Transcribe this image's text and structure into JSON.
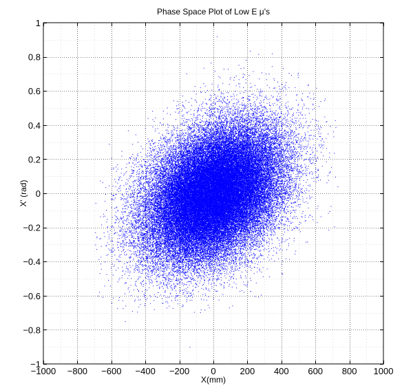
{
  "chart_data": {
    "type": "scatter",
    "title": "Phase Space Plot of Low E  μ's",
    "xlabel": "X(mm)",
    "ylabel": "X' (rad)",
    "xlim": [
      -1000,
      1000
    ],
    "ylim": [
      -1,
      1
    ],
    "x_ticks": [
      -1000,
      -800,
      -600,
      -400,
      -200,
      0,
      200,
      400,
      600,
      800,
      1000
    ],
    "y_ticks": [
      -1,
      -0.8,
      -0.6,
      -0.4,
      -0.2,
      0,
      0.2,
      0.4,
      0.6,
      0.8,
      1
    ],
    "x_tick_labels": [
      "−1000",
      "−800",
      "−600",
      "−400",
      "−200",
      "0",
      "200",
      "400",
      "600",
      "800",
      "1000"
    ],
    "y_tick_labels": [
      "−1",
      "−0.8",
      "−0.6",
      "−0.4",
      "−0.2",
      "0",
      "0.2",
      "0.4",
      "0.6",
      "0.8",
      "1"
    ],
    "grid": true,
    "grid_style": "dotted",
    "minor_ticks": true,
    "marker_color": "#0000ff",
    "distribution": {
      "kind": "correlated gaussian cloud",
      "point_count": 60000,
      "mean_x": 0,
      "mean_y": 0,
      "sigma_x": 200,
      "sigma_y": 0.2,
      "correlation": 0.35,
      "x_range": [
        -700,
        730
      ],
      "y_range": [
        -0.9,
        0.95
      ]
    },
    "outlier_points": [
      {
        "x": 730,
        "y": 0.04
      },
      {
        "x": -680,
        "y": -0.6
      },
      {
        "x": -140,
        "y": -0.9
      },
      {
        "x": 20,
        "y": 0.92
      },
      {
        "x": 590,
        "y": 0.56
      },
      {
        "x": -640,
        "y": -0.4
      },
      {
        "x": 640,
        "y": 0.32
      },
      {
        "x": -520,
        "y": -0.75
      }
    ]
  }
}
